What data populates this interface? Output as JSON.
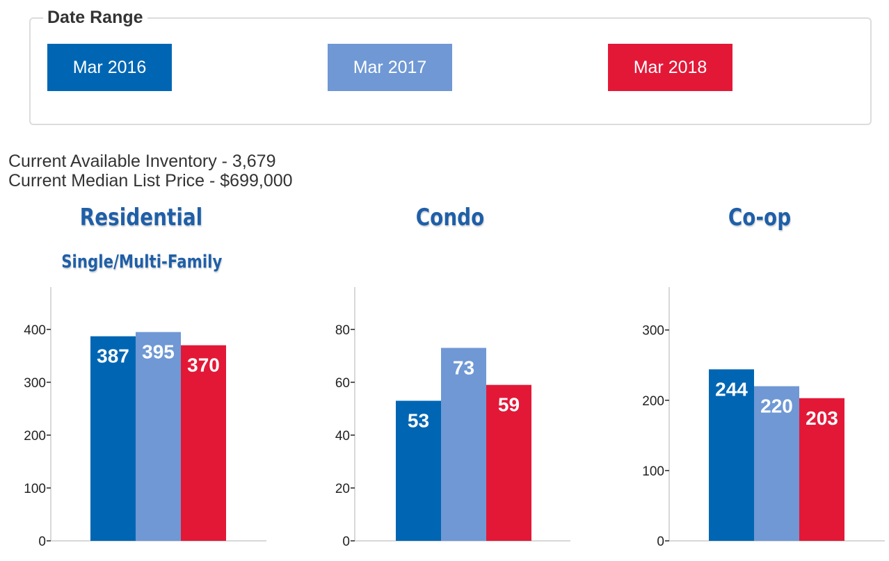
{
  "date_range": {
    "title": "Date Range",
    "buttons": [
      {
        "label": "Mar 2016",
        "color": "#0066b3"
      },
      {
        "label": "Mar 2017",
        "color": "#6f98d4"
      },
      {
        "label": "Mar 2018",
        "color": "#e31837"
      }
    ]
  },
  "summary": {
    "inventory": "Current Available Inventory - 3,679",
    "median_price": "Current Median List Price - $699,000"
  },
  "chart_data": [
    {
      "type": "bar",
      "title": "Residential",
      "subtitle": "Single/Multi-Family",
      "categories": [
        "Mar 2016",
        "Mar 2017",
        "Mar 2018"
      ],
      "values": [
        387,
        395,
        370
      ],
      "colors": [
        "#0066b3",
        "#6f98d4",
        "#e31837"
      ],
      "yticks": [
        0,
        100,
        200,
        300,
        400
      ],
      "ylim": [
        0,
        480
      ],
      "xlabel": "",
      "ylabel": "",
      "grid": false
    },
    {
      "type": "bar",
      "title": "Condo",
      "subtitle": "",
      "categories": [
        "Mar 2016",
        "Mar 2017",
        "Mar 2018"
      ],
      "values": [
        53,
        73,
        59
      ],
      "colors": [
        "#0066b3",
        "#6f98d4",
        "#e31837"
      ],
      "yticks": [
        0,
        20,
        40,
        60,
        80
      ],
      "ylim": [
        0,
        96
      ],
      "xlabel": "",
      "ylabel": "",
      "grid": false
    },
    {
      "type": "bar",
      "title": "Co-op",
      "subtitle": "",
      "categories": [
        "Mar 2016",
        "Mar 2017",
        "Mar 2018"
      ],
      "values": [
        244,
        220,
        203
      ],
      "colors": [
        "#0066b3",
        "#6f98d4",
        "#e31837"
      ],
      "yticks": [
        0,
        100,
        200,
        300
      ],
      "ylim": [
        0,
        361
      ],
      "xlabel": "",
      "ylabel": "",
      "grid": false
    }
  ]
}
